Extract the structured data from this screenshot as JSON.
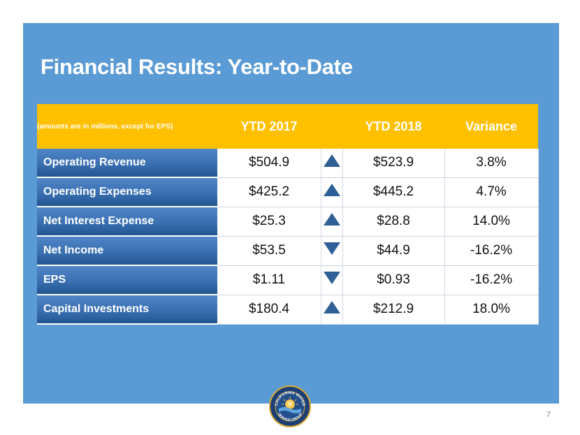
{
  "slide": {
    "title": "Financial Results: Year-to-Date",
    "page_number": "7"
  },
  "table": {
    "note": "(amounts are in millions, except for EPS)",
    "headers": [
      "YTD 2017",
      "YTD 2018",
      "Variance"
    ],
    "rows": [
      {
        "label": "Operating Revenue",
        "ytd2017": "$504.9",
        "trend": "up",
        "ytd2018": "$523.9",
        "variance": "3.8%"
      },
      {
        "label": "Operating Expenses",
        "ytd2017": "$425.2",
        "trend": "up",
        "ytd2018": "$445.2",
        "variance": "4.7%"
      },
      {
        "label": "Net Interest Expense",
        "ytd2017": "$25.3",
        "trend": "up",
        "ytd2018": "$28.8",
        "variance": "14.0%"
      },
      {
        "label": "Net Income",
        "ytd2017": "$53.5",
        "trend": "down",
        "ytd2018": "$44.9",
        "variance": "-16.2%"
      },
      {
        "label": "EPS",
        "ytd2017": "$1.11",
        "trend": "down",
        "ytd2018": "$0.93",
        "variance": "-16.2%"
      },
      {
        "label": "Capital Investments",
        "ytd2017": "$180.4",
        "trend": "up",
        "ytd2018": "$212.9",
        "variance": "18.0%"
      }
    ]
  },
  "logo": {
    "text_top": "CALIFORNIA WATER",
    "text_bottom": "SERVICE GROUP"
  },
  "colors": {
    "panel": "#5b9bd5",
    "header": "#ffc000",
    "label_cell": "#2f64a3",
    "arrow": "#2e5f96"
  }
}
